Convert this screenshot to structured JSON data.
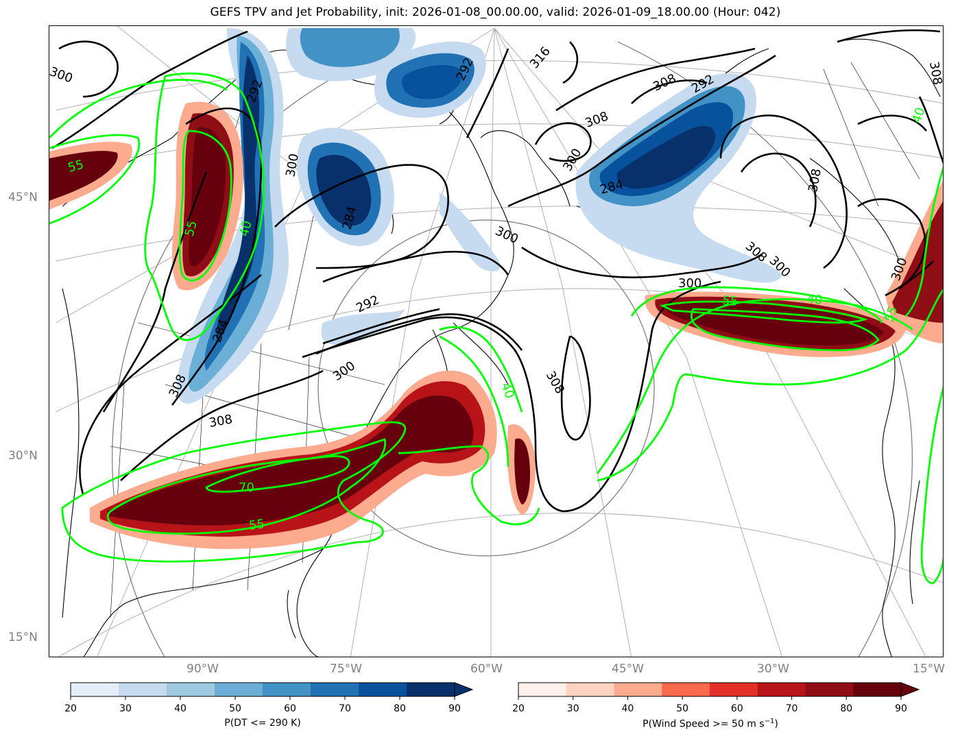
{
  "title": "GEFS TPV and Jet Probability, init: 2026-01-08_00.00.00, valid: 2026-01-09_18.00.00 (Hour: 042)",
  "lat_labels": [
    "45°N",
    "30°N",
    "15°N"
  ],
  "lon_labels": [
    "90°W",
    "75°W",
    "60°W",
    "45°W",
    "30°W",
    "15°W"
  ],
  "colorbars": {
    "dt": {
      "label": "P(DT <= 290 K)",
      "ticks": [
        "20",
        "30",
        "40",
        "50",
        "60",
        "70",
        "80",
        "90"
      ],
      "colors": [
        "#e3eef9",
        "#c6dbef",
        "#9ecae1",
        "#6baed6",
        "#4292c6",
        "#2171b5",
        "#08519c",
        "#08306b"
      ]
    },
    "wind": {
      "label_prefix": "P(Wind Speed >= 50 m s",
      "label_exp": "−1",
      "label_suffix": ")",
      "ticks": [
        "20",
        "30",
        "40",
        "50",
        "60",
        "70",
        "80",
        "90"
      ],
      "colors": [
        "#fff0eb",
        "#fdd2c0",
        "#fcab8f",
        "#f9694c",
        "#e32f27",
        "#b71319",
        "#8f0d15",
        "#67000d"
      ]
    }
  },
  "dt_contour_labels": [
    "300",
    "292",
    "284",
    "300",
    "292",
    "284",
    "308",
    "300",
    "292",
    "284",
    "308",
    "316",
    "300",
    "308",
    "308",
    "308",
    "300",
    "300",
    "292",
    "308",
    "308",
    "300",
    "308",
    "300"
  ],
  "jet_contour_labels": [
    "55",
    "55",
    "40",
    "70",
    "55",
    "40",
    "55",
    "40",
    "55",
    "40"
  ]
}
